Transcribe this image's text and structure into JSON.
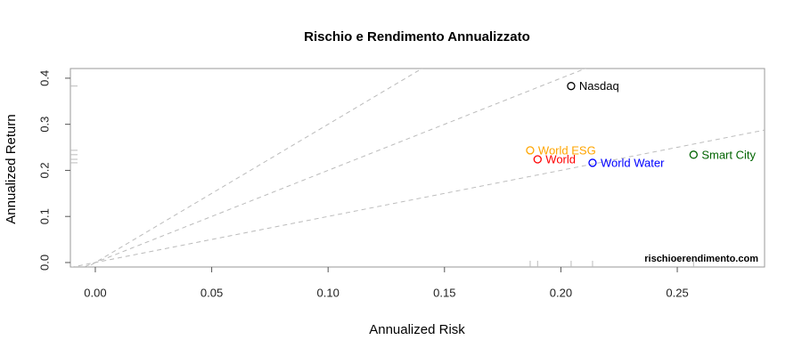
{
  "chart_data": {
    "type": "scatter",
    "title": "Rischio e Rendimento Annualizzato",
    "x_label": "Annualized Risk",
    "y_label": "Annualized Return",
    "watermark": "rischioerendimento.com",
    "series": [
      {
        "name": "Nasdaq",
        "color": "#000000",
        "x": [
          0.2044
        ],
        "values": [
          0.383
        ]
      },
      {
        "name": "World ESG",
        "color": "#ffa500",
        "x": [
          0.1868
        ],
        "values": [
          0.2435
        ]
      },
      {
        "name": "World",
        "color": "#ff0000",
        "x": [
          0.19
        ],
        "values": [
          0.224
        ]
      },
      {
        "name": "World Water",
        "color": "#0000ff",
        "x": [
          0.2136
        ],
        "values": [
          0.2164
        ]
      },
      {
        "name": "Smart City",
        "color": "#006400",
        "x": [
          0.257
        ],
        "values": [
          0.234
        ]
      }
    ],
    "reference_slopes": [
      1,
      2,
      3
    ],
    "xlim": [
      -0.0107,
      0.2875
    ],
    "ylim": [
      -0.0097,
      0.421
    ],
    "xticks": [
      {
        "value": 0,
        "label": "0.00"
      },
      0.05,
      {
        "value": 0.1,
        "label": "0.10"
      },
      0.15,
      {
        "value": 0.2,
        "label": "0.20"
      },
      0.25
    ],
    "yticks": [
      {
        "value": 0,
        "label": "0.0"
      },
      0.1,
      0.2,
      0.3,
      0.4
    ],
    "rug": true
  }
}
